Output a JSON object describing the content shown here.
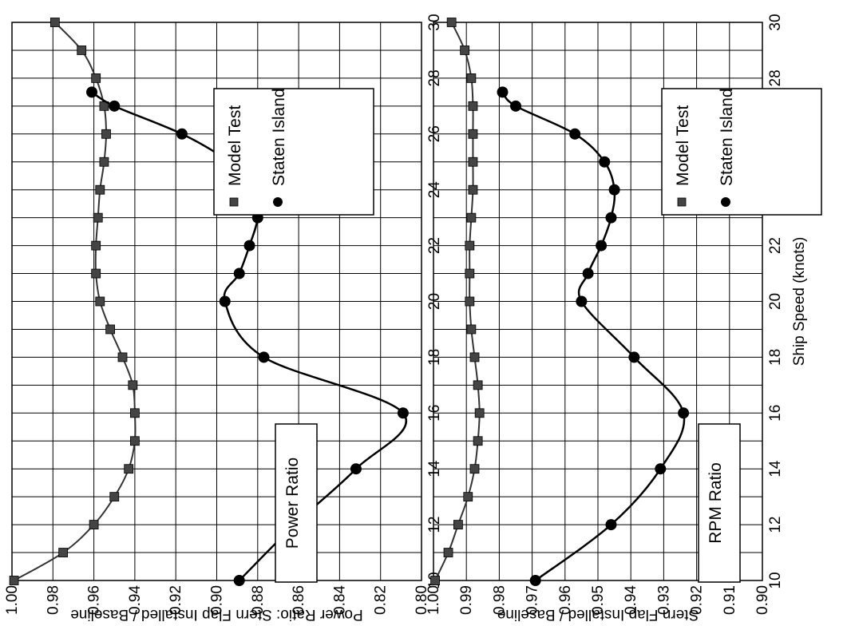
{
  "chart_data": [
    {
      "type": "scatter",
      "title": "Power Ratio",
      "xlabel": "",
      "ylabel": "Power Ratio: Stern Flap Installed / Baseline",
      "xlim": [
        10,
        30
      ],
      "ylim": [
        0.8,
        1.0
      ],
      "xticks": [
        "10",
        "12",
        "14",
        "16",
        "18",
        "20",
        "22",
        "24",
        "26",
        "28",
        "30"
      ],
      "yticks": [
        "1.00",
        "0.98",
        "0.96",
        "0.94",
        "0.92",
        "0.90",
        "0.88",
        "0.86",
        "0.84",
        "0.82",
        "0.80"
      ],
      "legend": [
        "Model Test",
        "Staten Island"
      ],
      "series": [
        {
          "name": "Model Test",
          "marker": "square",
          "color": "#444444",
          "x": [
            10,
            11,
            12,
            13,
            14,
            15,
            16,
            17,
            18,
            19,
            20,
            21,
            22,
            23,
            24,
            25,
            26,
            27,
            28,
            29,
            30
          ],
          "y": [
            0.999,
            0.975,
            0.96,
            0.95,
            0.943,
            0.94,
            0.94,
            0.941,
            0.946,
            0.952,
            0.957,
            0.959,
            0.959,
            0.958,
            0.957,
            0.955,
            0.954,
            0.955,
            0.959,
            0.966,
            0.979
          ]
        },
        {
          "name": "Staten Island",
          "marker": "circle",
          "color": "#000000",
          "x": [
            10,
            12,
            14,
            16,
            18,
            20,
            21,
            22,
            23,
            24,
            25,
            26,
            27,
            27.5
          ],
          "y": [
            0.889,
            0.862,
            0.832,
            0.809,
            0.877,
            0.896,
            0.889,
            0.884,
            0.88,
            0.881,
            0.894,
            0.917,
            0.95,
            0.961
          ]
        }
      ]
    },
    {
      "type": "scatter",
      "title": "RPM Ratio",
      "xlabel": "Ship Speed (knots)",
      "ylabel": "Engine Revolutions (RPM) Ratio: Stern Flap Installed / Baseline",
      "xlim": [
        10,
        30
      ],
      "ylim": [
        0.9,
        1.0
      ],
      "xticks": [
        "10",
        "12",
        "14",
        "16",
        "18",
        "20",
        "22",
        "24",
        "26",
        "28",
        "30"
      ],
      "yticks": [
        "1.00",
        "0.99",
        "0.98",
        "0.97",
        "0.96",
        "0.95",
        "0.94",
        "0.93",
        "0.92",
        "0.91",
        "0.90"
      ],
      "legend": [
        "Model Test",
        "Staten Island"
      ],
      "series": [
        {
          "name": "Model Test",
          "marker": "square",
          "color": "#444444",
          "x": [
            10,
            11,
            12,
            13,
            14,
            15,
            16,
            17,
            18,
            19,
            20,
            21,
            22,
            23,
            24,
            25,
            26,
            27,
            28,
            29,
            30
          ],
          "y": [
            0.9995,
            0.9955,
            0.9925,
            0.9895,
            0.9875,
            0.9865,
            0.986,
            0.9865,
            0.9875,
            0.9885,
            0.989,
            0.989,
            0.989,
            0.9885,
            0.988,
            0.988,
            0.988,
            0.988,
            0.9885,
            0.9905,
            0.9945
          ]
        },
        {
          "name": "Staten Island",
          "marker": "circle",
          "color": "#000000",
          "x": [
            10,
            12,
            14,
            16,
            18,
            20,
            21,
            22,
            23,
            24,
            25,
            26,
            27,
            27.5
          ],
          "y": [
            0.969,
            0.946,
            0.931,
            0.924,
            0.939,
            0.955,
            0.953,
            0.949,
            0.946,
            0.945,
            0.948,
            0.957,
            0.975,
            0.979
          ]
        }
      ]
    }
  ]
}
